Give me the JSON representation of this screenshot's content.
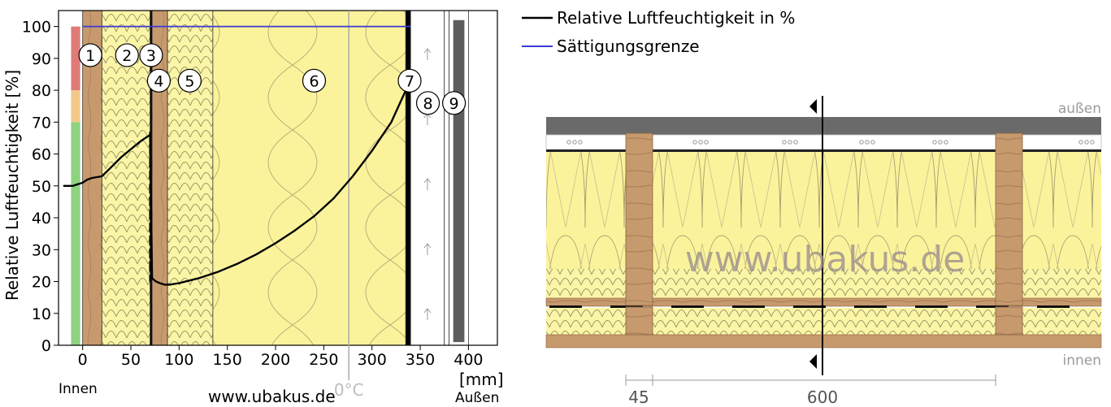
{
  "chart_data": {
    "type": "line",
    "ylabel": "Relative Luftfeuchtigkeit [%]",
    "xunit": "[mm]",
    "x_ticks": [
      0,
      50,
      100,
      150,
      200,
      250,
      300,
      350,
      400
    ],
    "y_ticks": [
      0,
      10,
      20,
      30,
      40,
      50,
      60,
      70,
      80,
      90,
      100
    ],
    "xlim": [
      -25,
      430
    ],
    "ylim": [
      0,
      105
    ],
    "inside_label": "Innen",
    "outside_label": "Außen",
    "watermark": "www.ubakus.de",
    "freeze_label": "0°C",
    "freeze_x": 276,
    "comfort_bands": [
      {
        "from": 0,
        "to": 70,
        "color": "#8fd27f"
      },
      {
        "from": 70,
        "to": 80,
        "color": "#f2c98a"
      },
      {
        "from": 80,
        "to": 100,
        "color": "#e07b78"
      }
    ],
    "layers": [
      {
        "from": 0,
        "to": 20,
        "type": "wood"
      },
      {
        "from": 20,
        "to": 70,
        "type": "insulation_soft"
      },
      {
        "from": 70,
        "to": 72,
        "type": "membrane"
      },
      {
        "from": 72,
        "to": 88,
        "type": "wood"
      },
      {
        "from": 88,
        "to": 135,
        "type": "insulation_soft"
      },
      {
        "from": 135,
        "to": 335,
        "type": "insulation"
      },
      {
        "from": 335,
        "to": 340,
        "type": "membrane"
      },
      {
        "from": 340,
        "to": 375,
        "type": "air"
      },
      {
        "from": 375,
        "to": 380,
        "type": "gap"
      },
      {
        "from": 380,
        "to": 400,
        "type": "cladding"
      }
    ],
    "layer_markers": [
      {
        "label": "1",
        "x": 8,
        "y": 91
      },
      {
        "label": "2",
        "x": 46,
        "y": 91
      },
      {
        "label": "3",
        "x": 71,
        "y": 91
      },
      {
        "label": "4",
        "x": 79,
        "y": 83
      },
      {
        "label": "5",
        "x": 111,
        "y": 83
      },
      {
        "label": "6",
        "x": 240,
        "y": 83
      },
      {
        "label": "7",
        "x": 339,
        "y": 83
      },
      {
        "label": "8",
        "x": 358,
        "y": 76
      },
      {
        "label": "9",
        "x": 385,
        "y": 76
      }
    ],
    "series": [
      {
        "name": "Relative Luftfeuchtigkeit in %",
        "color": "#000000",
        "x": [
          -20,
          -10,
          -5,
          0,
          5,
          10,
          20,
          30,
          40,
          50,
          60,
          70,
          72,
          76,
          80,
          85,
          90,
          100,
          120,
          140,
          160,
          180,
          200,
          220,
          240,
          260,
          280,
          300,
          320,
          335
        ],
        "y": [
          50,
          50,
          50.5,
          51,
          52,
          52.5,
          53,
          56,
          59,
          61.5,
          64,
          66,
          21,
          20,
          19.5,
          19,
          19,
          19.5,
          21,
          23,
          25.5,
          28.5,
          32,
          36,
          40.5,
          46,
          53,
          61,
          70,
          80
        ]
      },
      {
        "name": "Sättigungsgrenze",
        "color": "#3a3ad6",
        "x": [
          0,
          340
        ],
        "y": [
          100,
          100
        ]
      }
    ]
  },
  "section": {
    "watermark": "www.ubakus.de",
    "label_outside": "außen",
    "label_inside": "innen",
    "dim_left": "45",
    "dim_right": "600"
  }
}
